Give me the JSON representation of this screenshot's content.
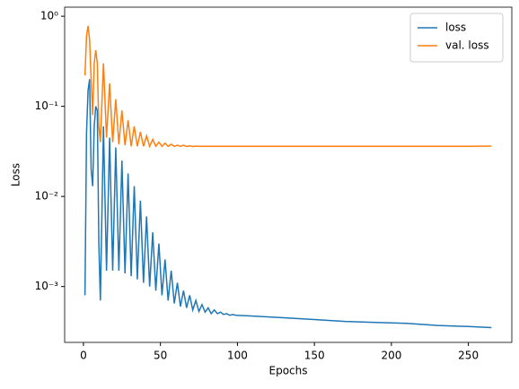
{
  "chart_data": {
    "type": "line",
    "xlabel": "Epochs",
    "ylabel": "Loss",
    "log_y": true,
    "legend": "upper right",
    "x": [
      1,
      2,
      3,
      4,
      5,
      6,
      7,
      8,
      9,
      10,
      11,
      13,
      15,
      17,
      19,
      21,
      23,
      25,
      27,
      29,
      31,
      33,
      35,
      37,
      39,
      41,
      43,
      45,
      47,
      49,
      51,
      53,
      55,
      57,
      59,
      61,
      63,
      65,
      67,
      69,
      71,
      73,
      75,
      77,
      79,
      81,
      83,
      85,
      87,
      89,
      91,
      93,
      95,
      97,
      99,
      110,
      130,
      150,
      170,
      190,
      210,
      230,
      250,
      265
    ],
    "series": [
      {
        "name": "loss",
        "color": "#1f77b4",
        "values": [
          0.0008,
          0.05,
          0.15,
          0.2,
          0.02,
          0.013,
          0.06,
          0.1,
          0.09,
          0.003,
          0.0007,
          0.06,
          0.0015,
          0.045,
          0.0015,
          0.035,
          0.0015,
          0.025,
          0.0014,
          0.018,
          0.0013,
          0.013,
          0.0012,
          0.009,
          0.0011,
          0.006,
          0.001,
          0.004,
          0.0009,
          0.003,
          0.0008,
          0.002,
          0.0007,
          0.0015,
          0.00065,
          0.0011,
          0.0006,
          0.0009,
          0.00058,
          0.0008,
          0.00055,
          0.0007,
          0.00053,
          0.00063,
          0.00052,
          0.00058,
          0.0005,
          0.00055,
          0.0005,
          0.00052,
          0.00049,
          0.0005,
          0.00048,
          0.00049,
          0.00048,
          0.00047,
          0.00045,
          0.00043,
          0.00041,
          0.0004,
          0.00039,
          0.00037,
          0.00036,
          0.00035
        ]
      },
      {
        "name": "val. loss",
        "color": "#ff7f0e",
        "values": [
          0.22,
          0.6,
          0.78,
          0.55,
          0.2,
          0.08,
          0.3,
          0.42,
          0.3,
          0.06,
          0.04,
          0.3,
          0.045,
          0.18,
          0.04,
          0.12,
          0.038,
          0.09,
          0.037,
          0.07,
          0.036,
          0.06,
          0.036,
          0.052,
          0.036,
          0.047,
          0.036,
          0.043,
          0.036,
          0.04,
          0.036,
          0.039,
          0.036,
          0.038,
          0.036,
          0.037,
          0.036,
          0.037,
          0.0358,
          0.0365,
          0.0358,
          0.0362,
          0.036,
          0.036,
          0.036,
          0.036,
          0.036,
          0.036,
          0.036,
          0.036,
          0.036,
          0.036,
          0.036,
          0.036,
          0.036,
          0.036,
          0.036,
          0.036,
          0.036,
          0.036,
          0.036,
          0.036,
          0.036,
          0.0362
        ]
      }
    ],
    "xlim": [
      -12.2,
      278.2
    ],
    "xticks": [
      0,
      50,
      100,
      150,
      200,
      250
    ],
    "ylim": [
      0.00024,
      1.26
    ],
    "yticks": [
      {
        "value": 0.001,
        "label": "10⁻³"
      },
      {
        "value": 0.01,
        "label": "10⁻²"
      },
      {
        "value": 0.1,
        "label": "10⁻¹"
      },
      {
        "value": 1,
        "label": "10⁰"
      }
    ]
  }
}
